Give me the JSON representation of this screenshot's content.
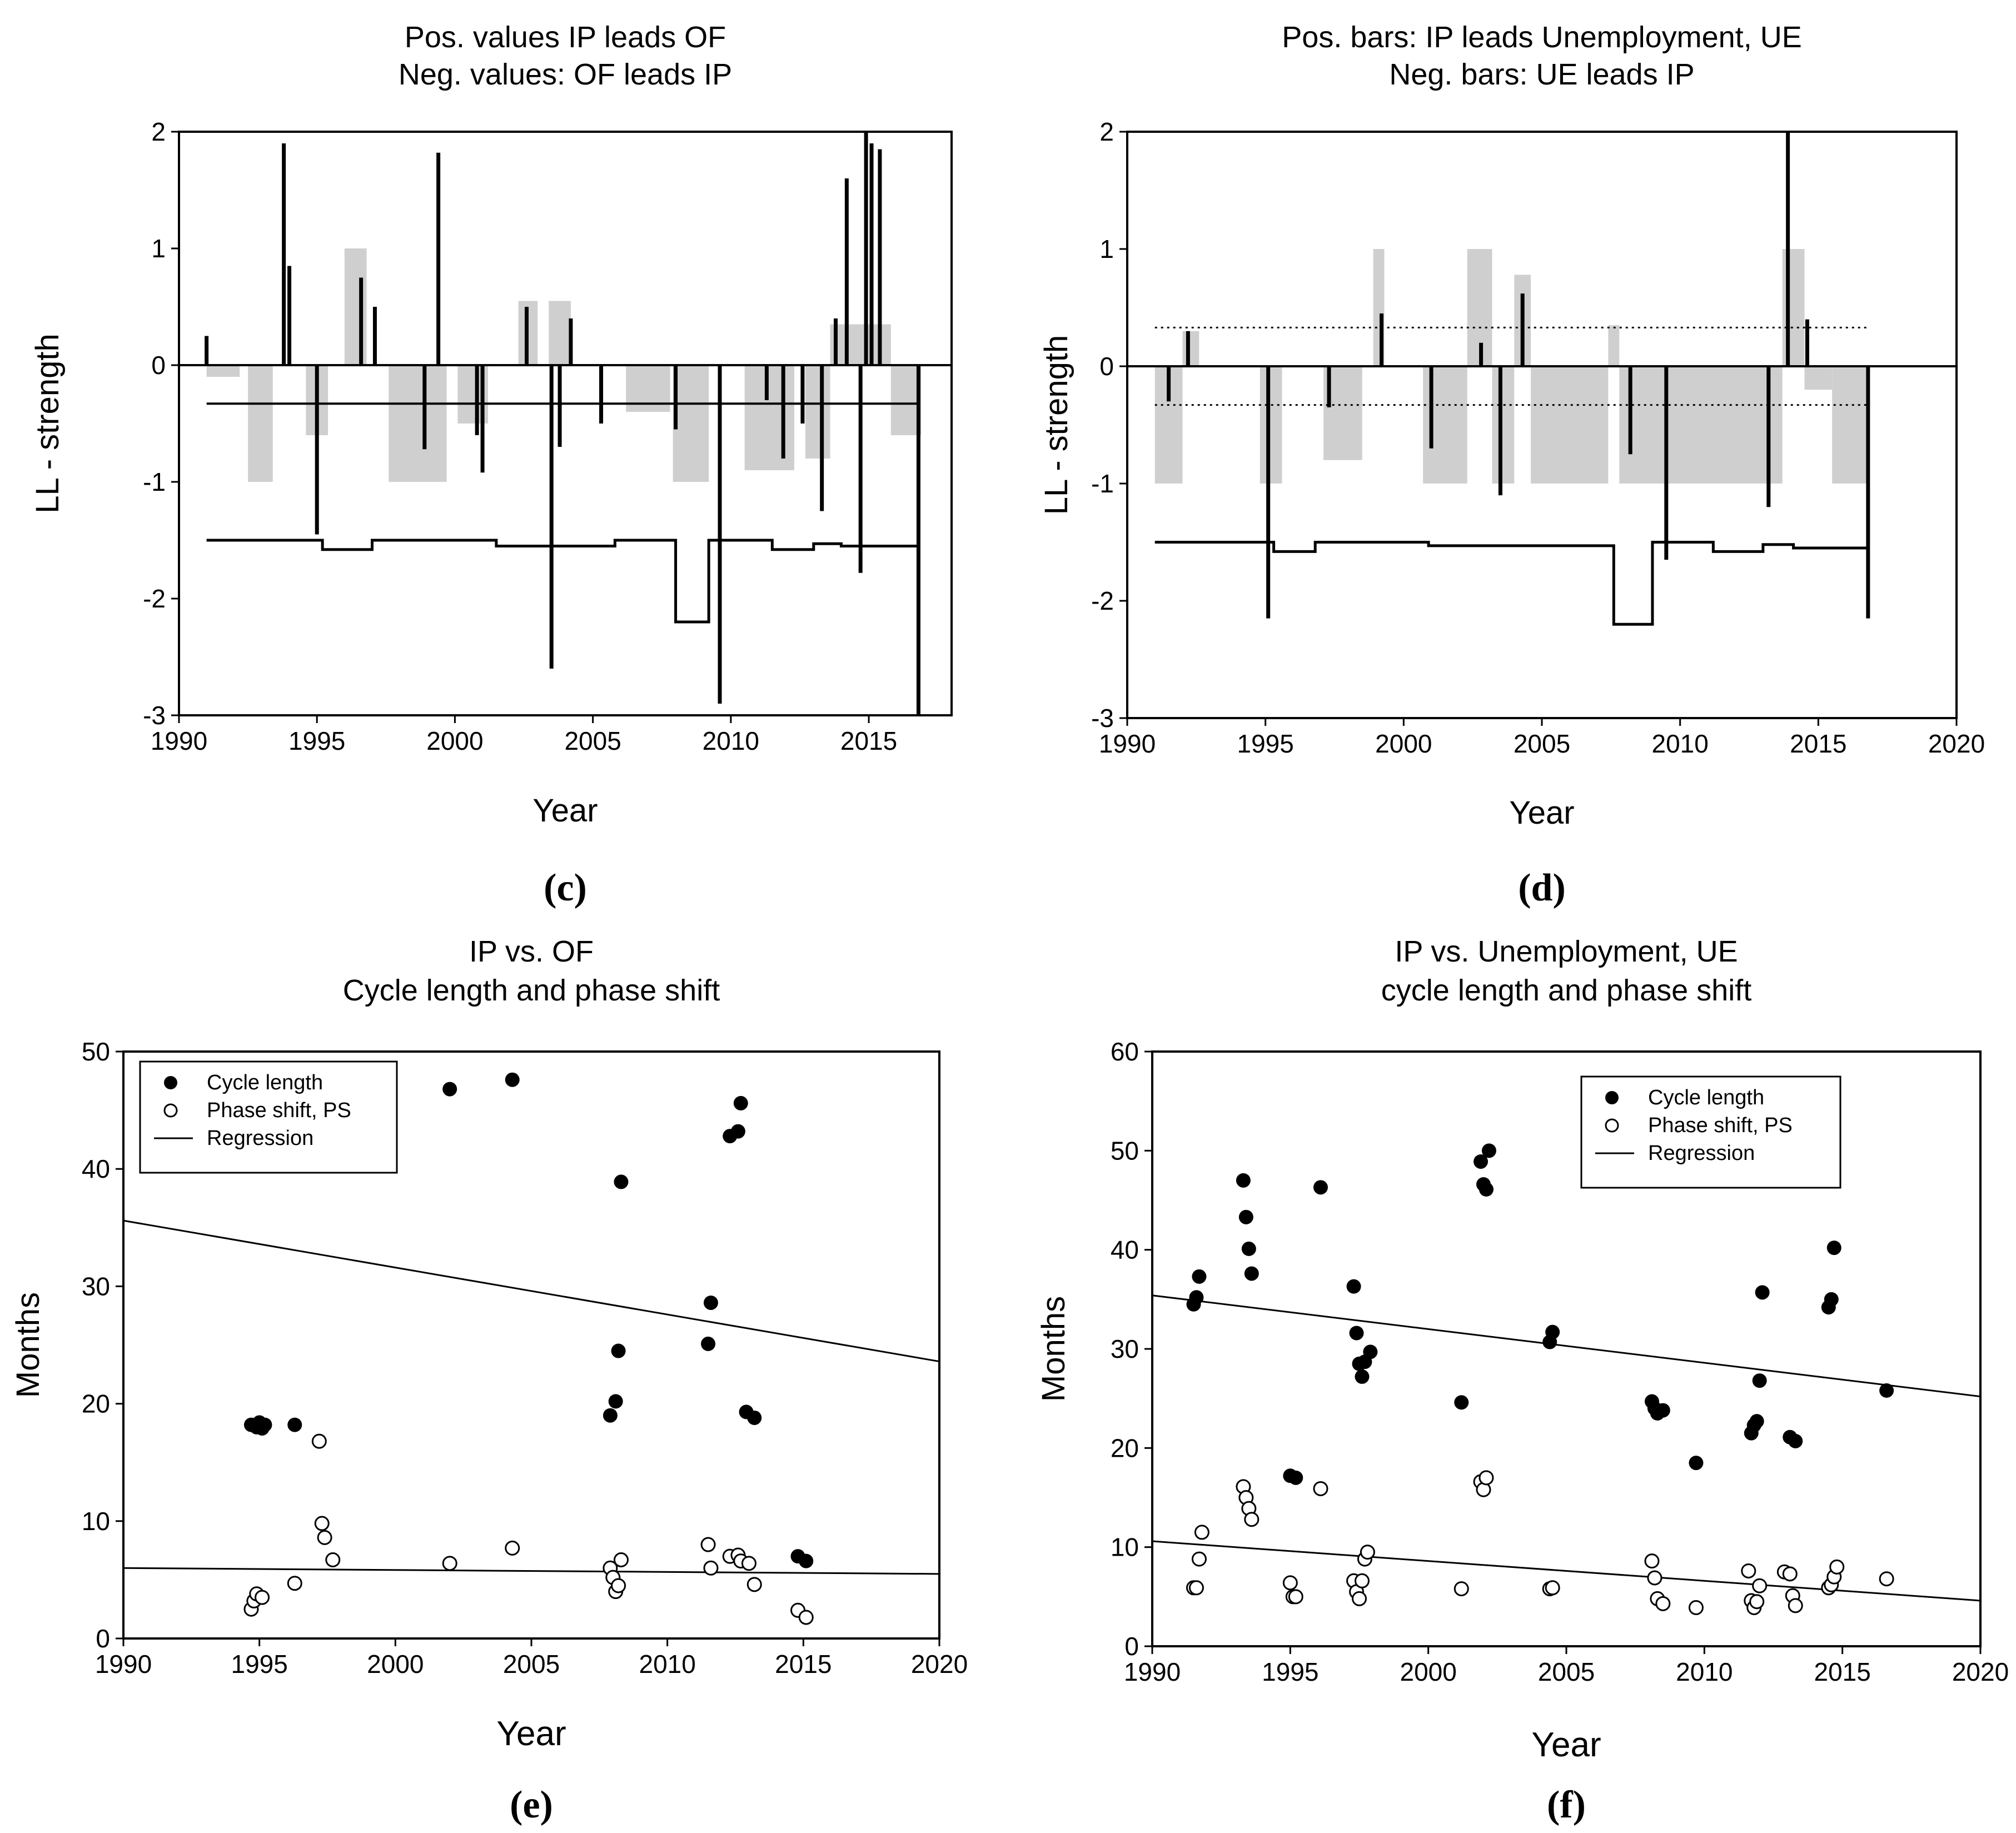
{
  "chart_data": [
    {
      "id": "c",
      "type": "bar",
      "caption": "(c)",
      "title_lines": [
        "Pos. values IP leads OF",
        "Neg. values: OF leads IP"
      ],
      "xlabel": "Year",
      "ylabel": "LL - strength",
      "xlim": [
        1990,
        2018
      ],
      "ylim": [
        -3,
        2
      ],
      "xticks": [
        "1990",
        "1995",
        "2000",
        "2005",
        "2010",
        "2015"
      ],
      "yticks": [
        "2",
        "1",
        "0",
        "-1",
        "-2",
        "-3"
      ],
      "threshold_line": -0.33,
      "spikes": [
        [
          1991,
          0.25
        ],
        [
          1993.8,
          1.9
        ],
        [
          1994.0,
          0.85
        ],
        [
          1995.0,
          -1.45
        ],
        [
          1996.6,
          0.75
        ],
        [
          1997.1,
          0.5
        ],
        [
          1998.9,
          -0.72
        ],
        [
          1999.4,
          1.82
        ],
        [
          2000.8,
          -0.6
        ],
        [
          2001.0,
          -0.92
        ],
        [
          2002.6,
          0.5
        ],
        [
          2003.5,
          -2.6
        ],
        [
          2003.8,
          -0.7
        ],
        [
          2004.2,
          0.4
        ],
        [
          2005.3,
          -0.5
        ],
        [
          2008.0,
          -0.55
        ],
        [
          2009.6,
          -2.9
        ],
        [
          2011.3,
          -0.3
        ],
        [
          2011.9,
          -0.8
        ],
        [
          2012.6,
          -0.5
        ],
        [
          2013.3,
          -1.25
        ],
        [
          2013.8,
          0.4
        ],
        [
          2014.2,
          1.6
        ],
        [
          2014.7,
          -1.78
        ],
        [
          2014.9,
          2.0
        ],
        [
          2015.1,
          1.9
        ],
        [
          2015.4,
          1.85
        ],
        [
          2016.8,
          -3.0
        ]
      ],
      "grey_bands": [
        [
          1991,
          1992.2,
          -0.1
        ],
        [
          1992.5,
          1993.4,
          -1.0
        ],
        [
          1994.6,
          1995.4,
          -0.6
        ],
        [
          1996.0,
          1996.8,
          1.0
        ],
        [
          1997.6,
          1999.7,
          -1.0
        ],
        [
          2000.1,
          2001.2,
          -0.5
        ],
        [
          2002.3,
          2003.0,
          0.55
        ],
        [
          2003.4,
          2004.2,
          0.55
        ],
        [
          2006.2,
          2007.8,
          -0.4
        ],
        [
          2007.9,
          2009.2,
          -1.0
        ],
        [
          2010.5,
          2012.3,
          -0.9
        ],
        [
          2012.7,
          2013.6,
          -0.8
        ],
        [
          2013.6,
          2015.8,
          0.35
        ],
        [
          2015.8,
          2016.9,
          -0.6
        ]
      ],
      "state_line": [
        [
          1991,
          -1.5
        ],
        [
          1995.2,
          -1.5
        ],
        [
          1995.2,
          -1.58
        ],
        [
          1997.0,
          -1.58
        ],
        [
          1997.0,
          -1.5
        ],
        [
          2001.5,
          -1.5
        ],
        [
          2001.5,
          -1.55
        ],
        [
          2005.8,
          -1.55
        ],
        [
          2005.8,
          -1.5
        ],
        [
          2008.0,
          -1.5
        ],
        [
          2008.0,
          -2.2
        ],
        [
          2009.2,
          -2.2
        ],
        [
          2009.2,
          -1.5
        ],
        [
          2011.5,
          -1.5
        ],
        [
          2011.5,
          -1.58
        ],
        [
          2013.0,
          -1.58
        ],
        [
          2013.0,
          -1.53
        ],
        [
          2014.0,
          -1.53
        ],
        [
          2014.0,
          -1.55
        ],
        [
          2016.8,
          -1.55
        ]
      ]
    },
    {
      "id": "d",
      "type": "bar",
      "caption": "(d)",
      "title_lines": [
        "Pos. bars: IP leads Unemployment, UE",
        "Neg. bars: UE leads IP"
      ],
      "xlabel": "Year",
      "ylabel": "LL - strength",
      "xlim": [
        1990,
        2020
      ],
      "ylim": [
        -3,
        2
      ],
      "xticks": [
        "1990",
        "1995",
        "2000",
        "2005",
        "2010",
        "2015",
        "2020"
      ],
      "yticks": [
        "2",
        "1",
        "0",
        "-1",
        "-2",
        "-3"
      ],
      "dotted_lines": [
        0.33,
        -0.33
      ],
      "spikes": [
        [
          1991.5,
          -0.3
        ],
        [
          1992.2,
          0.3
        ],
        [
          1995.1,
          -2.15
        ],
        [
          1997.3,
          -0.35
        ],
        [
          1999.2,
          0.45
        ],
        [
          2001.0,
          -0.7
        ],
        [
          2002.8,
          0.2
        ],
        [
          2003.5,
          -1.1
        ],
        [
          2004.3,
          0.62
        ],
        [
          2008.2,
          -0.75
        ],
        [
          2009.5,
          -1.65
        ],
        [
          2013.2,
          -1.2
        ],
        [
          2013.9,
          2.0
        ],
        [
          2014.6,
          0.4
        ],
        [
          2016.8,
          -2.15
        ]
      ],
      "grey_bands": [
        [
          1991.0,
          1992.0,
          -1.0
        ],
        [
          1992.0,
          1992.6,
          0.3
        ],
        [
          1994.8,
          1995.6,
          -1.0
        ],
        [
          1997.1,
          1998.5,
          -0.8
        ],
        [
          1998.9,
          1999.3,
          1.0
        ],
        [
          2000.7,
          2002.3,
          -1.0
        ],
        [
          2002.3,
          2003.2,
          1.0
        ],
        [
          2003.2,
          2004.0,
          -1.0
        ],
        [
          2004.0,
          2004.6,
          0.78
        ],
        [
          2004.6,
          2007.4,
          -1.0
        ],
        [
          2007.4,
          2007.8,
          0.35
        ],
        [
          2007.8,
          2013.7,
          -1.0
        ],
        [
          2013.7,
          2014.5,
          1.0
        ],
        [
          2014.5,
          2015.5,
          -0.2
        ],
        [
          2015.5,
          2016.8,
          -1.0
        ]
      ],
      "state_line": [
        [
          1991,
          -1.5
        ],
        [
          1995.3,
          -1.5
        ],
        [
          1995.3,
          -1.58
        ],
        [
          1996.8,
          -1.58
        ],
        [
          1996.8,
          -1.5
        ],
        [
          2000.9,
          -1.5
        ],
        [
          2000.9,
          -1.53
        ],
        [
          2007.6,
          -1.53
        ],
        [
          2007.6,
          -2.2
        ],
        [
          2009.0,
          -2.2
        ],
        [
          2009.0,
          -1.5
        ],
        [
          2011.2,
          -1.5
        ],
        [
          2011.2,
          -1.58
        ],
        [
          2013.0,
          -1.58
        ],
        [
          2013.0,
          -1.52
        ],
        [
          2014.1,
          -1.52
        ],
        [
          2014.1,
          -1.55
        ],
        [
          2016.8,
          -1.55
        ]
      ]
    },
    {
      "id": "e",
      "type": "scatter",
      "caption": "(e)",
      "title_lines": [
        "IP vs. OF",
        "Cycle length and phase shift"
      ],
      "xlabel": "Year",
      "ylabel": "Months",
      "xlim": [
        1990,
        2020
      ],
      "ylim": [
        0,
        50
      ],
      "xticks": [
        "1990",
        "1995",
        "2000",
        "2005",
        "2010",
        "2015",
        "2020"
      ],
      "yticks": [
        "50",
        "40",
        "30",
        "20",
        "10",
        "0"
      ],
      "legend": [
        "Cycle length",
        "Phase shift, PS",
        "Regression"
      ],
      "cycle_length": [
        [
          1994.7,
          18.2
        ],
        [
          1994.9,
          18.0
        ],
        [
          1995.0,
          18.4
        ],
        [
          1995.1,
          17.9
        ],
        [
          1995.2,
          18.2
        ],
        [
          1996.3,
          18.2
        ],
        [
          2002.0,
          46.8
        ],
        [
          2004.3,
          47.6
        ],
        [
          2007.9,
          19.0
        ],
        [
          2008.1,
          20.2
        ],
        [
          2008.2,
          24.5
        ],
        [
          2008.3,
          38.9
        ],
        [
          2011.5,
          25.1
        ],
        [
          2011.6,
          28.6
        ],
        [
          2012.3,
          42.8
        ],
        [
          2012.6,
          43.2
        ],
        [
          2012.7,
          45.6
        ],
        [
          2012.9,
          19.3
        ],
        [
          2013.2,
          18.8
        ],
        [
          2014.8,
          7.0
        ],
        [
          2015.1,
          6.6
        ]
      ],
      "phase_shift": [
        [
          1994.7,
          2.5
        ],
        [
          1994.8,
          3.2
        ],
        [
          1994.9,
          3.8
        ],
        [
          1995.1,
          3.5
        ],
        [
          1996.3,
          4.7
        ],
        [
          1997.2,
          16.8
        ],
        [
          1997.3,
          9.8
        ],
        [
          1997.4,
          8.6
        ],
        [
          1997.7,
          6.7
        ],
        [
          2002.0,
          6.4
        ],
        [
          2004.3,
          7.7
        ],
        [
          2007.9,
          6.0
        ],
        [
          2008.0,
          5.2
        ],
        [
          2008.1,
          4.0
        ],
        [
          2008.2,
          4.5
        ],
        [
          2008.3,
          6.7
        ],
        [
          2011.5,
          8.0
        ],
        [
          2011.6,
          6.0
        ],
        [
          2012.3,
          7.0
        ],
        [
          2012.6,
          7.1
        ],
        [
          2012.7,
          6.6
        ],
        [
          2013.0,
          6.4
        ],
        [
          2013.2,
          4.6
        ],
        [
          2014.8,
          2.4
        ],
        [
          2015.1,
          1.8
        ]
      ],
      "regression_cycle": [
        [
          1990,
          35.6
        ],
        [
          2020,
          23.6
        ]
      ],
      "regression_phase": [
        [
          1990,
          6.0
        ],
        [
          2020,
          5.5
        ]
      ]
    },
    {
      "id": "f",
      "type": "scatter",
      "caption": "(f)",
      "title_lines": [
        "IP vs. Unemployment, UE",
        "cycle  length and phase shift"
      ],
      "xlabel": "Year",
      "ylabel": "Months",
      "xlim": [
        1990,
        2020
      ],
      "ylim": [
        0,
        60
      ],
      "xticks": [
        "1990",
        "1995",
        "2000",
        "2005",
        "2010",
        "2015",
        "2020"
      ],
      "yticks": [
        "60",
        "50",
        "40",
        "30",
        "20",
        "10",
        "0"
      ],
      "legend": [
        "Cycle length",
        "Phase shift, PS",
        "Regression"
      ],
      "cycle_length": [
        [
          1991.5,
          34.5
        ],
        [
          1991.6,
          35.2
        ],
        [
          1991.7,
          37.3
        ],
        [
          1993.3,
          47.0
        ],
        [
          1993.4,
          43.3
        ],
        [
          1993.5,
          40.1
        ],
        [
          1993.6,
          37.6
        ],
        [
          1995.0,
          17.2
        ],
        [
          1995.2,
          17.0
        ],
        [
          1996.1,
          46.3
        ],
        [
          1997.3,
          36.3
        ],
        [
          1997.4,
          31.6
        ],
        [
          1997.5,
          28.5
        ],
        [
          1997.6,
          27.2
        ],
        [
          1997.7,
          28.7
        ],
        [
          1997.9,
          29.7
        ],
        [
          2001.2,
          24.6
        ],
        [
          2001.9,
          48.9
        ],
        [
          2002.0,
          46.6
        ],
        [
          2002.1,
          46.1
        ],
        [
          2002.2,
          50.0
        ],
        [
          2004.4,
          30.7
        ],
        [
          2004.5,
          31.7
        ],
        [
          2008.1,
          24.7
        ],
        [
          2008.2,
          24.0
        ],
        [
          2008.3,
          23.5
        ],
        [
          2008.5,
          23.8
        ],
        [
          2009.7,
          18.5
        ],
        [
          2011.7,
          21.5
        ],
        [
          2011.8,
          22.3
        ],
        [
          2011.9,
          22.7
        ],
        [
          2012.0,
          26.8
        ],
        [
          2012.1,
          35.7
        ],
        [
          2013.1,
          21.1
        ],
        [
          2013.3,
          20.7
        ],
        [
          2014.5,
          34.2
        ],
        [
          2014.6,
          35.0
        ],
        [
          2014.7,
          40.2
        ],
        [
          2016.6,
          25.8
        ]
      ],
      "phase_shift": [
        [
          1991.5,
          5.9
        ],
        [
          1991.6,
          5.9
        ],
        [
          1991.7,
          8.8
        ],
        [
          1991.8,
          11.5
        ],
        [
          1993.3,
          16.1
        ],
        [
          1993.4,
          15.0
        ],
        [
          1993.5,
          13.9
        ],
        [
          1993.6,
          12.8
        ],
        [
          1995.0,
          6.4
        ],
        [
          1995.1,
          5.0
        ],
        [
          1995.2,
          5.0
        ],
        [
          1996.1,
          15.9
        ],
        [
          1997.3,
          6.6
        ],
        [
          1997.4,
          5.5
        ],
        [
          1997.5,
          4.8
        ],
        [
          1997.6,
          6.6
        ],
        [
          1997.7,
          8.8
        ],
        [
          1997.8,
          9.5
        ],
        [
          2001.2,
          5.8
        ],
        [
          2001.9,
          16.6
        ],
        [
          2002.0,
          15.8
        ],
        [
          2002.1,
          17.0
        ],
        [
          2004.4,
          5.8
        ],
        [
          2004.5,
          5.9
        ],
        [
          2008.1,
          8.6
        ],
        [
          2008.2,
          6.9
        ],
        [
          2008.3,
          4.8
        ],
        [
          2008.5,
          4.3
        ],
        [
          2009.7,
          3.9
        ],
        [
          2011.6,
          7.6
        ],
        [
          2011.7,
          4.6
        ],
        [
          2011.8,
          3.9
        ],
        [
          2011.9,
          4.5
        ],
        [
          2012.0,
          6.1
        ],
        [
          2012.9,
          7.5
        ],
        [
          2013.1,
          7.3
        ],
        [
          2013.2,
          5.1
        ],
        [
          2013.3,
          4.1
        ],
        [
          2014.5,
          5.9
        ],
        [
          2014.6,
          6.2
        ],
        [
          2014.7,
          7.0
        ],
        [
          2014.8,
          8.0
        ],
        [
          2016.6,
          6.8
        ]
      ],
      "regression_cycle": [
        [
          1990,
          35.4
        ],
        [
          2020,
          25.2
        ]
      ],
      "regression_phase": [
        [
          1990,
          10.6
        ],
        [
          2020,
          4.6
        ]
      ]
    }
  ]
}
